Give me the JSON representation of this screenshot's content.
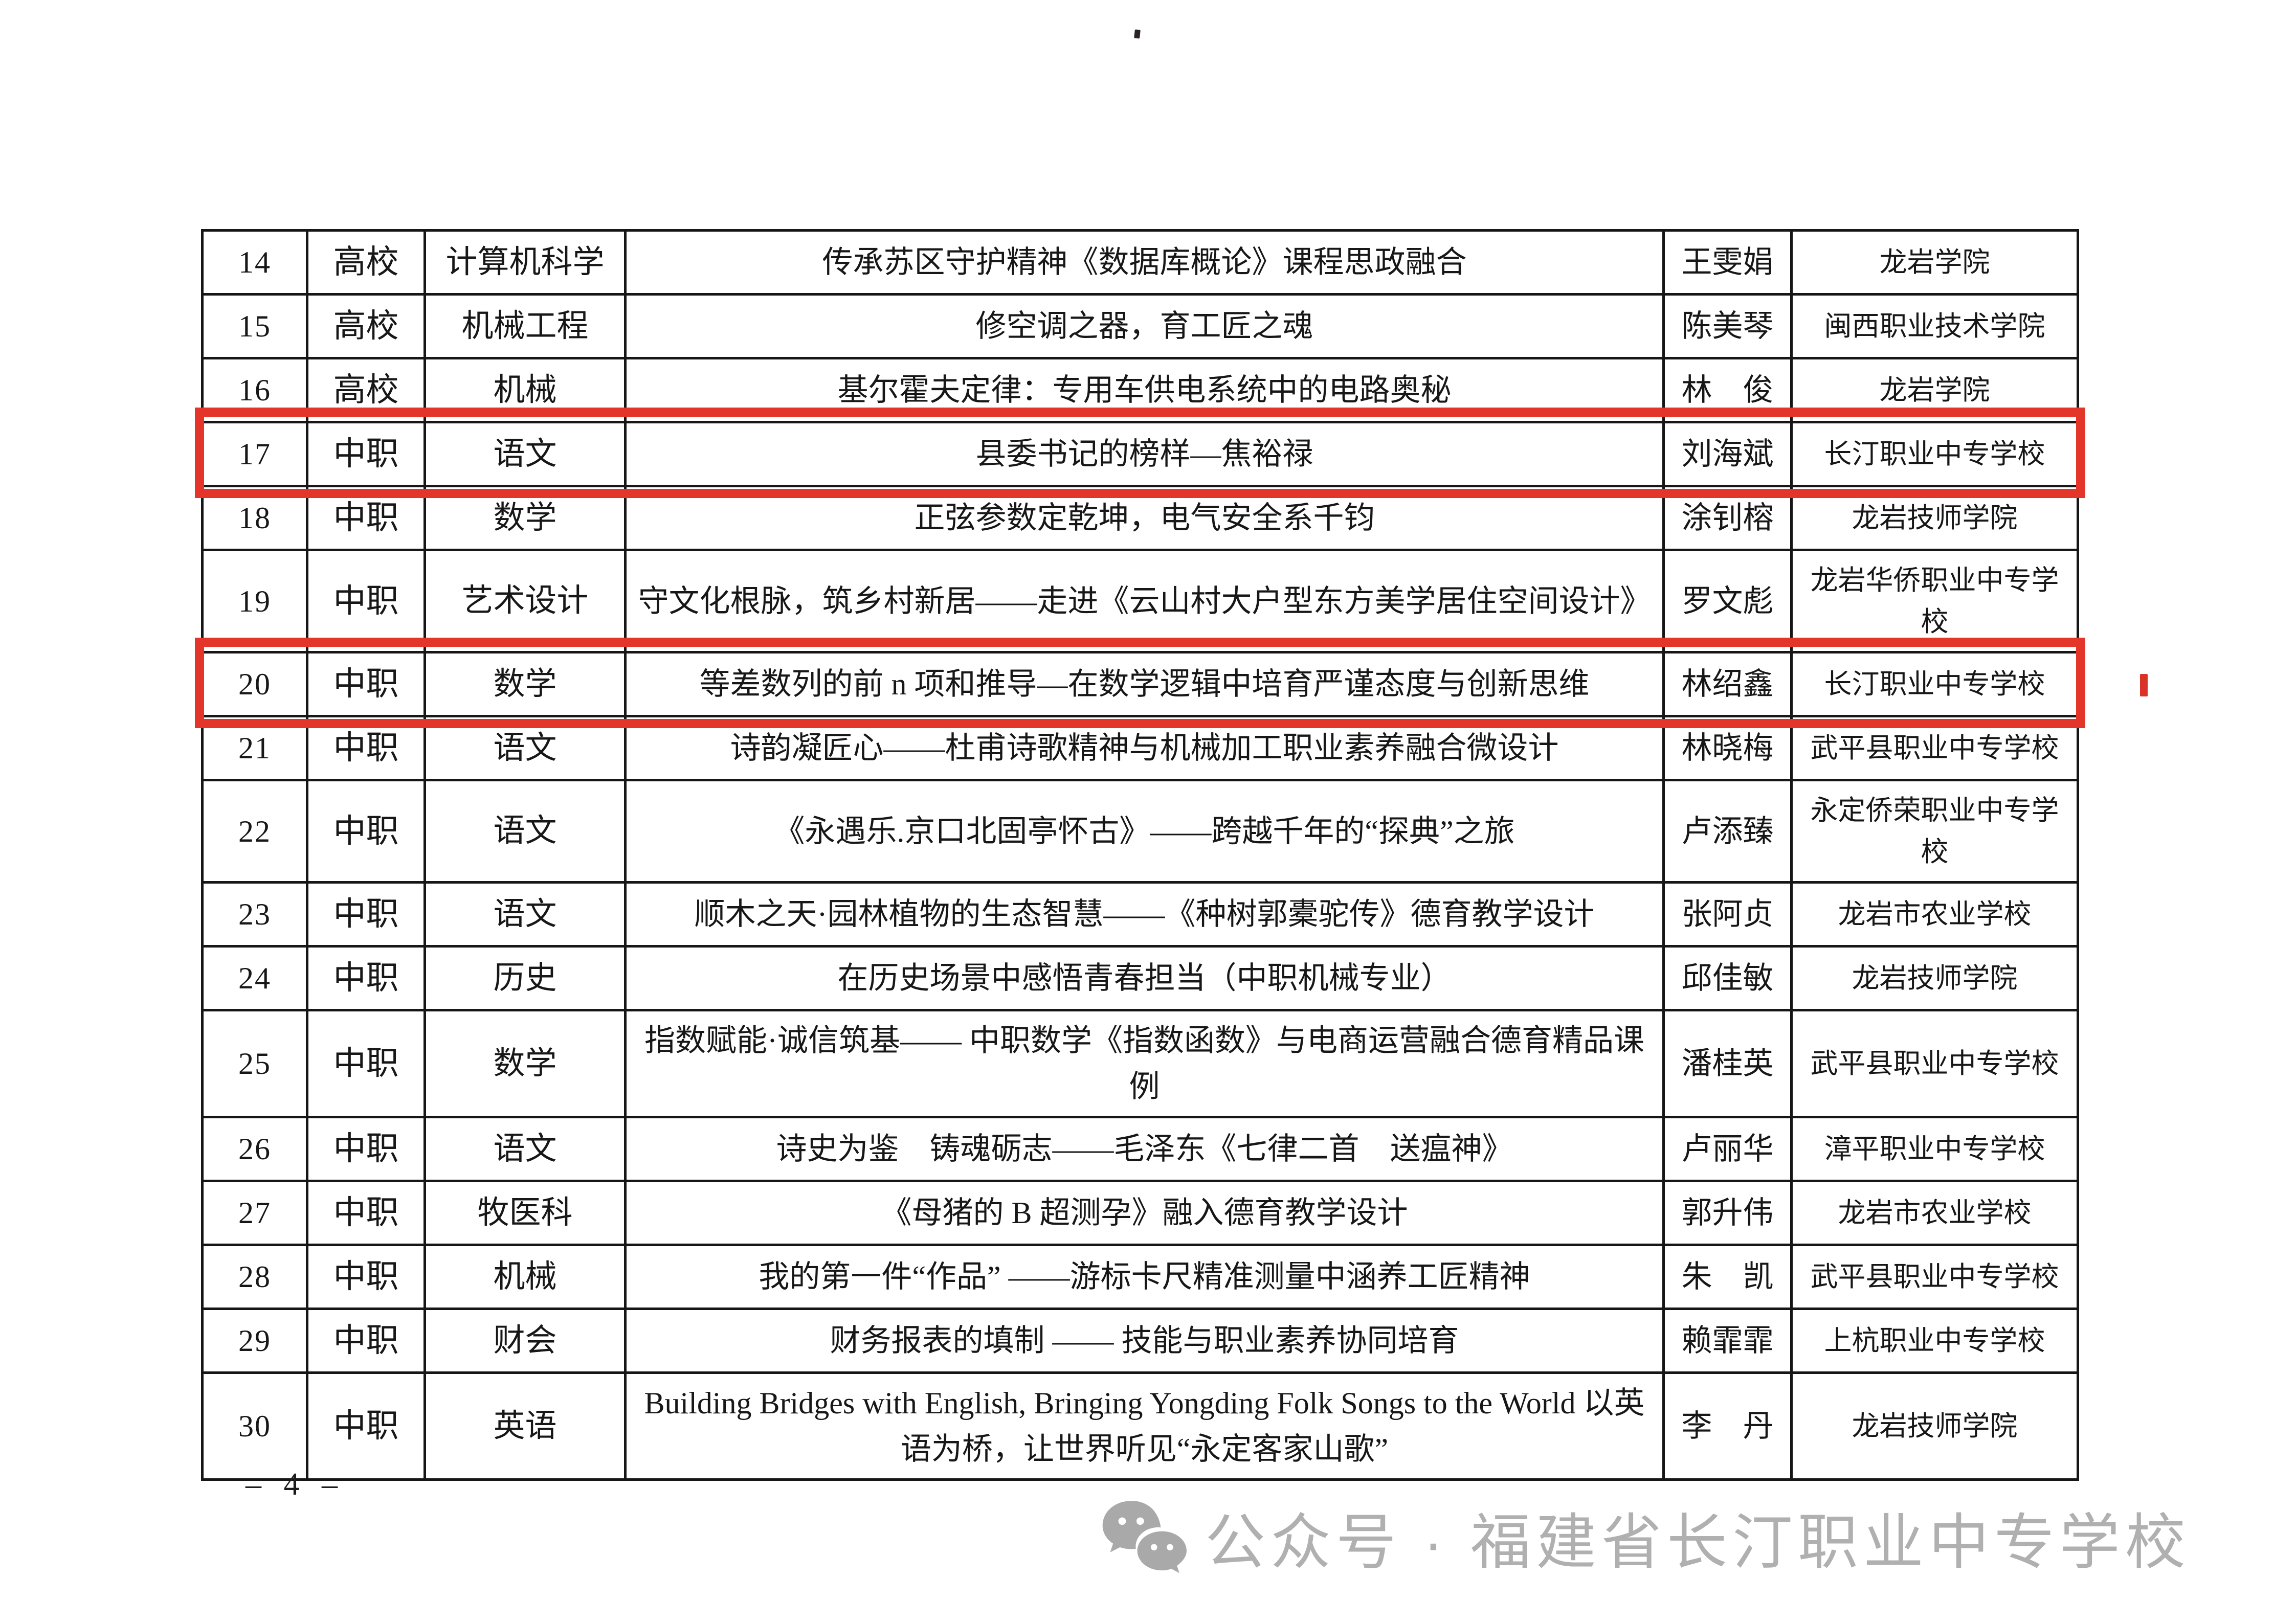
{
  "page": {
    "page_number": "– 4 –"
  },
  "watermark": {
    "icon": "wechat-icon",
    "text": "公众号 · 福建省长汀职业中专学校",
    "color": "#b0b0b0"
  },
  "highlight": {
    "color": "#e33529",
    "highlighted_row_numbers": [
      "17",
      "20"
    ]
  },
  "table": {
    "cell_order": [
      "no",
      "category",
      "subject",
      "title",
      "name",
      "school"
    ],
    "rows": [
      {
        "no": "14",
        "category": "高校",
        "subject": "计算机科学",
        "title": "传承苏区守护精神《数据库概论》课程思政融合",
        "name": "王雯娟",
        "school": "龙岩学院",
        "highlighted": false
      },
      {
        "no": "15",
        "category": "高校",
        "subject": "机械工程",
        "title": "修空调之器，育工匠之魂",
        "name": "陈美琴",
        "school": "闽西职业技术学院",
        "highlighted": false
      },
      {
        "no": "16",
        "category": "高校",
        "subject": "机械",
        "title": "基尔霍夫定律：专用车供电系统中的电路奥秘",
        "name": "林　俊",
        "school": "龙岩学院",
        "highlighted": false
      },
      {
        "no": "17",
        "category": "中职",
        "subject": "语文",
        "title": "县委书记的榜样—焦裕禄",
        "name": "刘海斌",
        "school": "长汀职业中专学校",
        "highlighted": true
      },
      {
        "no": "18",
        "category": "中职",
        "subject": "数学",
        "title": "正弦参数定乾坤，电气安全系千钧",
        "name": "涂钊榕",
        "school": "龙岩技师学院",
        "highlighted": false
      },
      {
        "no": "19",
        "category": "中职",
        "subject": "艺术设计",
        "title": "守文化根脉，筑乡村新居——走进《云山村大户型东方美学居住空间设计》",
        "name": "罗文彪",
        "school": "龙岩华侨职业中专学校",
        "highlighted": false
      },
      {
        "no": "20",
        "category": "中职",
        "subject": "数学",
        "title": "等差数列的前 n 项和推导—在数学逻辑中培育严谨态度与创新思维",
        "name": "林绍鑫",
        "school": "长汀职业中专学校",
        "highlighted": true
      },
      {
        "no": "21",
        "category": "中职",
        "subject": "语文",
        "title": "诗韵凝匠心——杜甫诗歌精神与机械加工职业素养融合微设计",
        "name": "林晓梅",
        "school": "武平县职业中专学校",
        "highlighted": false
      },
      {
        "no": "22",
        "category": "中职",
        "subject": "语文",
        "title": "《永遇乐.京口北固亭怀古》——跨越千年的“探典”之旅",
        "name": "卢添臻",
        "school": "永定侨荣职业中专学校",
        "highlighted": false
      },
      {
        "no": "23",
        "category": "中职",
        "subject": "语文",
        "title": "顺木之天·园林植物的生态智慧——《种树郭橐驼传》德育教学设计",
        "name": "张阿贞",
        "school": "龙岩市农业学校",
        "highlighted": false
      },
      {
        "no": "24",
        "category": "中职",
        "subject": "历史",
        "title": "在历史场景中感悟青春担当（中职机械专业）",
        "name": "邱佳敏",
        "school": "龙岩技师学院",
        "highlighted": false
      },
      {
        "no": "25",
        "category": "中职",
        "subject": "数学",
        "title": "指数赋能·诚信筑基—— 中职数学《指数函数》与电商运营融合德育精品课例",
        "name": "潘桂英",
        "school": "武平县职业中专学校",
        "highlighted": false
      },
      {
        "no": "26",
        "category": "中职",
        "subject": "语文",
        "title": "诗史为鉴　铸魂砺志——毛泽东《七律二首　送瘟神》",
        "name": "卢丽华",
        "school": "漳平职业中专学校",
        "highlighted": false
      },
      {
        "no": "27",
        "category": "中职",
        "subject": "牧医科",
        "title": "《母猪的 B 超测孕》融入德育教学设计",
        "name": "郭升伟",
        "school": "龙岩市农业学校",
        "highlighted": false
      },
      {
        "no": "28",
        "category": "中职",
        "subject": "机械",
        "title": "我的第一件“作品” ——游标卡尺精准测量中涵养工匠精神",
        "name": "朱　凯",
        "school": "武平县职业中专学校",
        "highlighted": false
      },
      {
        "no": "29",
        "category": "中职",
        "subject": "财会",
        "title": "财务报表的填制 —— 技能与职业素养协同培育",
        "name": "赖霏霏",
        "school": "上杭职业中专学校",
        "highlighted": false
      },
      {
        "no": "30",
        "category": "中职",
        "subject": "英语",
        "title": "Building Bridges with English, Bringing Yongding Folk Songs to the World 以英语为桥，让世界听见“永定客家山歌”",
        "name": "李　丹",
        "school": "龙岩技师学院",
        "highlighted": false
      }
    ]
  }
}
